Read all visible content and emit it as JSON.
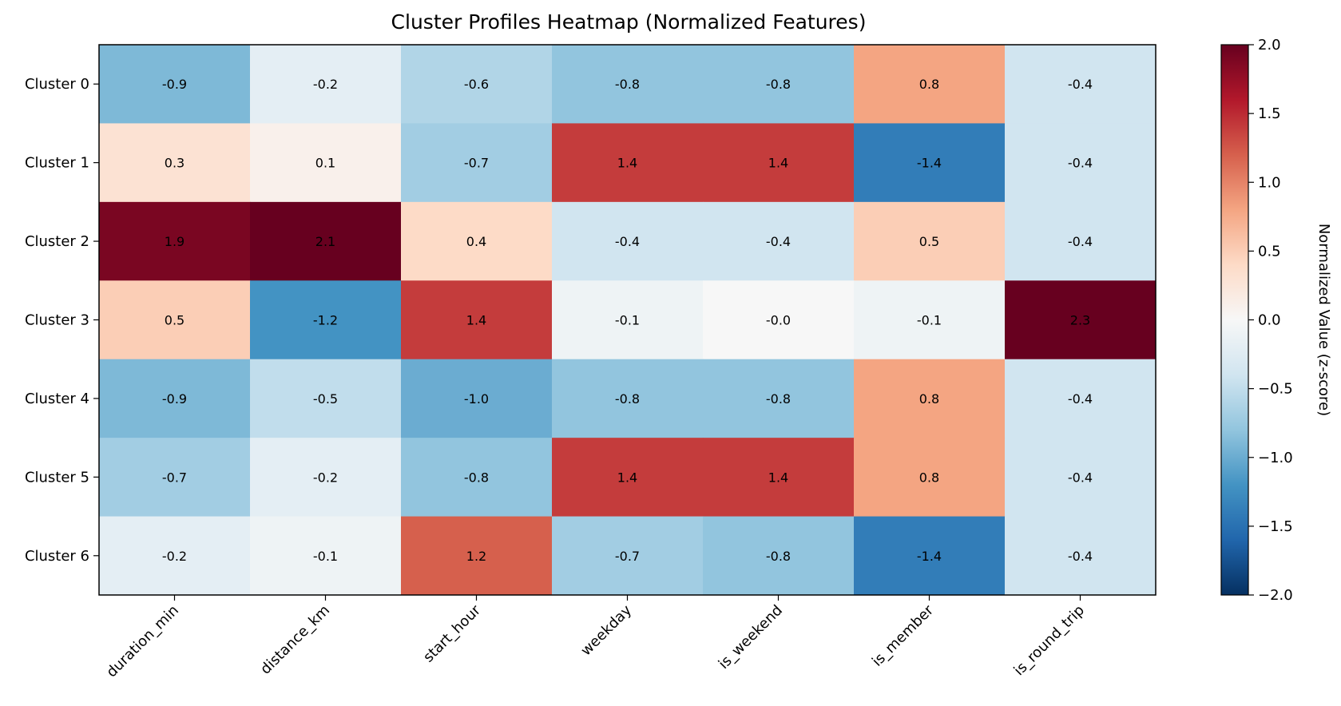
{
  "chart_data": {
    "type": "heatmap",
    "title": "Cluster Profiles Heatmap (Normalized Features)",
    "rows": [
      "Cluster 0",
      "Cluster 1",
      "Cluster 2",
      "Cluster 3",
      "Cluster 4",
      "Cluster 5",
      "Cluster 6"
    ],
    "columns": [
      "duration_min",
      "distance_km",
      "start_hour",
      "weekday",
      "is_weekend",
      "is_member",
      "is_round_trip"
    ],
    "values": [
      [
        -0.9,
        -0.2,
        -0.6,
        -0.8,
        -0.8,
        0.8,
        -0.4
      ],
      [
        0.3,
        0.1,
        -0.7,
        1.4,
        1.4,
        -1.4,
        -0.4
      ],
      [
        1.9,
        2.1,
        0.4,
        -0.4,
        -0.4,
        0.5,
        -0.4
      ],
      [
        0.5,
        -1.2,
        1.4,
        -0.1,
        -0.0,
        -0.1,
        2.3
      ],
      [
        -0.9,
        -0.5,
        -1.0,
        -0.8,
        -0.8,
        0.8,
        -0.4
      ],
      [
        -0.7,
        -0.2,
        -0.8,
        1.4,
        1.4,
        0.8,
        -0.4
      ],
      [
        -0.2,
        -0.1,
        1.2,
        -0.7,
        -0.8,
        -1.4,
        -0.4
      ]
    ],
    "value_labels": [
      [
        "-0.9",
        "-0.2",
        "-0.6",
        "-0.8",
        "-0.8",
        "0.8",
        "-0.4"
      ],
      [
        "0.3",
        "0.1",
        "-0.7",
        "1.4",
        "1.4",
        "-1.4",
        "-0.4"
      ],
      [
        "1.9",
        "2.1",
        "0.4",
        "-0.4",
        "-0.4",
        "0.5",
        "-0.4"
      ],
      [
        "0.5",
        "-1.2",
        "1.4",
        "-0.1",
        "-0.0",
        "-0.1",
        "2.3"
      ],
      [
        "-0.9",
        "-0.5",
        "-1.0",
        "-0.8",
        "-0.8",
        "0.8",
        "-0.4"
      ],
      [
        "-0.7",
        "-0.2",
        "-0.8",
        "1.4",
        "1.4",
        "0.8",
        "-0.4"
      ],
      [
        "-0.2",
        "-0.1",
        "1.2",
        "-0.7",
        "-0.8",
        "-1.4",
        "-0.4"
      ]
    ],
    "colorbar": {
      "label": "Normalized Value (z-score)",
      "range": [
        -2.0,
        2.0
      ],
      "ticks": [
        2.0,
        1.5,
        1.0,
        0.5,
        0.0,
        -0.5,
        -1.0,
        -1.5,
        -2.0
      ],
      "tick_labels": [
        "2.0",
        "1.5",
        "1.0",
        "0.5",
        "0.0",
        "−0.5",
        "−1.0",
        "−1.5",
        "−2.0"
      ],
      "colormap": "RdBu_r"
    }
  }
}
